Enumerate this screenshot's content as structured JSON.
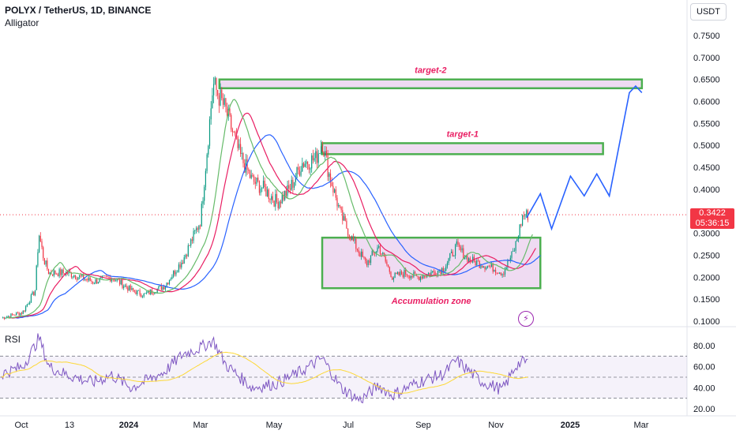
{
  "header": {
    "symbol_line": "POLYX / TetherUS, 1D, BINANCE",
    "indicator": "Alligator",
    "currency_button": "USDT",
    "rsi_label": "RSI"
  },
  "price_badge": {
    "price": "0.3422",
    "countdown": "05:36:15"
  },
  "colors": {
    "up": "#089981",
    "down": "#f23645",
    "jaw": "#2962ff",
    "teeth": "#e91e63",
    "lips": "#66bb6a",
    "rsi": "#7e57c2",
    "rsi_ma": "#fdd835",
    "box_border": "#4caf50",
    "box_fill": "#e1bee7",
    "projection": "#2962ff"
  },
  "chart_data": [
    {
      "type": "candlestick",
      "y_axis_ticks": [
        "0.1000",
        "0.1500",
        "0.2000",
        "0.2500",
        "0.3000",
        "0.3500",
        "0.4000",
        "0.4500",
        "0.5000",
        "0.5500",
        "0.6000",
        "0.6500",
        "0.7000",
        "0.7500"
      ],
      "x_axis_ticks": [
        "Oct",
        "13",
        "2024",
        "Mar",
        "May",
        "Jul",
        "Sep",
        "Nov",
        "2025",
        "Mar"
      ],
      "ylim": [
        0.09,
        0.78
      ],
      "price_path": [
        [
          "2023-09-25",
          0.105
        ],
        [
          "2023-10-15",
          0.12
        ],
        [
          "2023-10-25",
          0.17
        ],
        [
          "2023-10-28",
          0.3
        ],
        [
          "2023-11-01",
          0.24
        ],
        [
          "2023-11-05",
          0.21
        ],
        [
          "2023-11-20",
          0.21
        ],
        [
          "2023-12-10",
          0.19
        ],
        [
          "2023-12-25",
          0.2
        ],
        [
          "2024-01-10",
          0.17
        ],
        [
          "2024-01-20",
          0.16
        ],
        [
          "2024-02-05",
          0.18
        ],
        [
          "2024-02-20",
          0.24
        ],
        [
          "2024-03-05",
          0.33
        ],
        [
          "2024-03-15",
          0.64
        ],
        [
          "2024-03-25",
          0.58
        ],
        [
          "2024-04-05",
          0.48
        ],
        [
          "2024-04-15",
          0.42
        ],
        [
          "2024-04-25",
          0.4
        ],
        [
          "2024-05-05",
          0.37
        ],
        [
          "2024-05-15",
          0.4
        ],
        [
          "2024-05-25",
          0.46
        ],
        [
          "2024-06-05",
          0.47
        ],
        [
          "2024-06-10",
          0.51
        ],
        [
          "2024-06-15",
          0.44
        ],
        [
          "2024-06-25",
          0.34
        ],
        [
          "2024-07-05",
          0.28
        ],
        [
          "2024-07-15",
          0.23
        ],
        [
          "2024-07-25",
          0.27
        ],
        [
          "2024-08-05",
          0.2
        ],
        [
          "2024-08-15",
          0.21
        ],
        [
          "2024-08-25",
          0.2
        ],
        [
          "2024-09-05",
          0.21
        ],
        [
          "2024-09-15",
          0.22
        ],
        [
          "2024-09-25",
          0.27
        ],
        [
          "2024-10-05",
          0.24
        ],
        [
          "2024-10-15",
          0.23
        ],
        [
          "2024-10-25",
          0.22
        ],
        [
          "2024-11-01",
          0.21
        ],
        [
          "2024-11-10",
          0.26
        ],
        [
          "2024-11-17",
          0.34
        ],
        [
          "2024-11-22",
          0.3422
        ]
      ],
      "boxes": [
        {
          "label": "target-2",
          "y_low": 0.63,
          "y_high": 0.65,
          "x_start": "2024-03-20",
          "x_end": "2025-02-20"
        },
        {
          "label": "target-1",
          "y_low": 0.48,
          "y_high": 0.505,
          "x_start": "2024-06-10",
          "x_end": "2025-01-20"
        },
        {
          "label": "Accumulation zone",
          "y_low": 0.175,
          "y_high": 0.29,
          "x_start": "2024-06-10",
          "x_end": "2024-12-01"
        }
      ],
      "projection": [
        [
          "2024-11-20",
          0.335
        ],
        [
          "2024-12-01",
          0.39
        ],
        [
          "2024-12-10",
          0.31
        ],
        [
          "2024-12-25",
          0.43
        ],
        [
          "2025-01-05",
          0.385
        ],
        [
          "2025-01-15",
          0.435
        ],
        [
          "2025-01-25",
          0.385
        ],
        [
          "2025-02-10",
          0.62
        ],
        [
          "2025-02-15",
          0.635
        ],
        [
          "2025-02-20",
          0.62
        ]
      ],
      "current_price": 0.3422
    },
    {
      "type": "line",
      "name": "RSI",
      "y_axis_ticks": [
        "20.00",
        "40.00",
        "60.00",
        "80.00"
      ],
      "ylim": [
        15,
        95
      ],
      "bands": [
        30,
        50,
        70
      ],
      "values_path": [
        [
          "2023-09-25",
          52
        ],
        [
          "2023-10-15",
          60
        ],
        [
          "2023-10-25",
          80
        ],
        [
          "2023-10-28",
          88
        ],
        [
          "2023-11-05",
          60
        ],
        [
          "2023-11-20",
          52
        ],
        [
          "2023-12-10",
          45
        ],
        [
          "2023-12-25",
          52
        ],
        [
          "2024-01-10",
          40
        ],
        [
          "2024-02-05",
          55
        ],
        [
          "2024-02-20",
          72
        ],
        [
          "2024-03-05",
          78
        ],
        [
          "2024-03-15",
          85
        ],
        [
          "2024-03-25",
          62
        ],
        [
          "2024-04-15",
          40
        ],
        [
          "2024-05-05",
          44
        ],
        [
          "2024-05-25",
          56
        ],
        [
          "2024-06-10",
          68
        ],
        [
          "2024-06-25",
          40
        ],
        [
          "2024-07-10",
          28
        ],
        [
          "2024-07-25",
          42
        ],
        [
          "2024-08-05",
          33
        ],
        [
          "2024-08-25",
          45
        ],
        [
          "2024-09-15",
          53
        ],
        [
          "2024-09-25",
          66
        ],
        [
          "2024-10-15",
          46
        ],
        [
          "2024-11-01",
          38
        ],
        [
          "2024-11-12",
          62
        ],
        [
          "2024-11-22",
          66
        ]
      ]
    }
  ]
}
